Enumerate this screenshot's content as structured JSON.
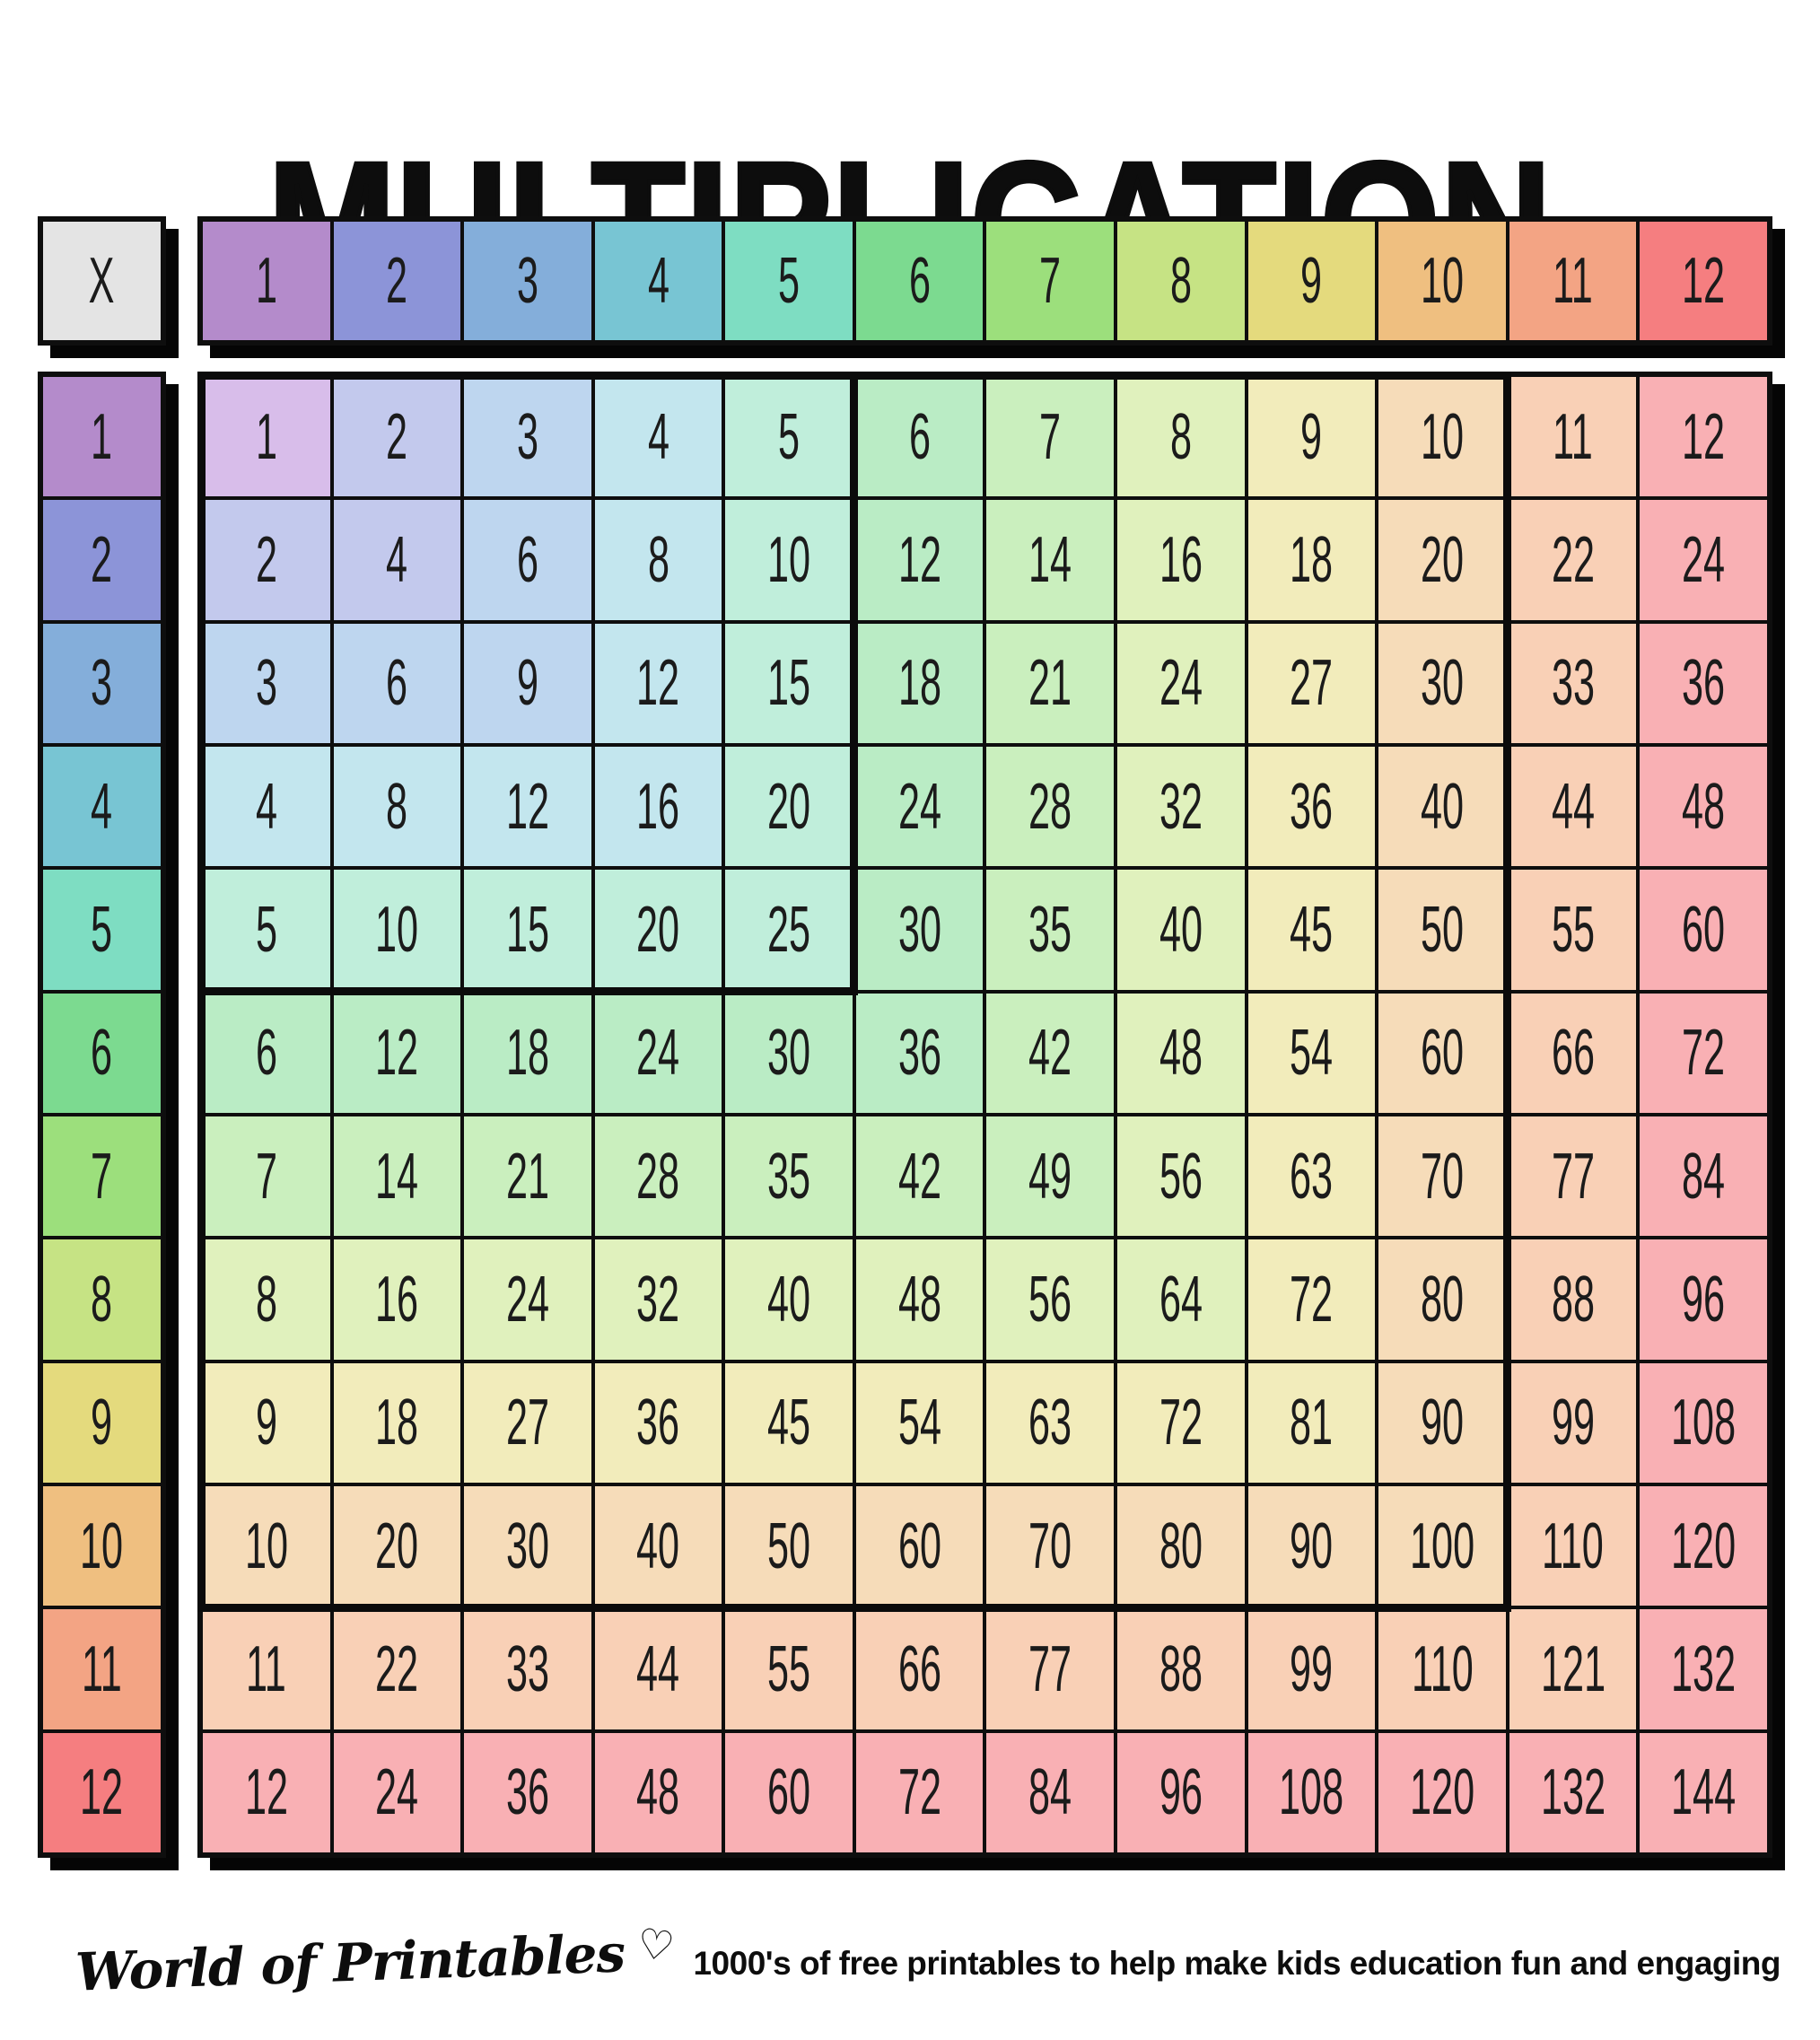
{
  "title": "MULTIPLICATION",
  "corner_label": "X",
  "footer": {
    "brand": "World of Printables",
    "heart_icon": "♡",
    "tagline": "1000's of free printables to help make kids education fun and engaging"
  },
  "palette": {
    "line": "#0e0e0e",
    "corner_bg": "#e4e4e4",
    "header": [
      "#b48bcb",
      "#8c94d8",
      "#84aeda",
      "#78c5d3",
      "#7eddc2",
      "#7cda90",
      "#9cdf7c",
      "#c6e384",
      "#e4da7d",
      "#efbf80",
      "#f3a484",
      "#f57e80"
    ],
    "tint": [
      "#d8bdea",
      "#c3c9ed",
      "#bed6ef",
      "#c3e6ee",
      "#c0eedb",
      "#baecc5",
      "#caefbe",
      "#e0f1bd",
      "#f2ecbb",
      "#f6dcb9",
      "#f9d0b6",
      "#f9b0b4"
    ]
  },
  "chart_data": {
    "type": "table",
    "title": "MULTIPLICATION",
    "col_headers": [
      "1",
      "2",
      "3",
      "4",
      "5",
      "6",
      "7",
      "8",
      "9",
      "10",
      "11",
      "12"
    ],
    "row_headers": [
      "1",
      "2",
      "3",
      "4",
      "5",
      "6",
      "7",
      "8",
      "9",
      "10",
      "11",
      "12"
    ],
    "values": [
      [
        1,
        2,
        3,
        4,
        5,
        6,
        7,
        8,
        9,
        10,
        11,
        12
      ],
      [
        2,
        4,
        6,
        8,
        10,
        12,
        14,
        16,
        18,
        20,
        22,
        24
      ],
      [
        3,
        6,
        9,
        12,
        15,
        18,
        21,
        24,
        27,
        30,
        33,
        36
      ],
      [
        4,
        8,
        12,
        16,
        20,
        24,
        28,
        32,
        36,
        40,
        44,
        48
      ],
      [
        5,
        10,
        15,
        20,
        25,
        30,
        35,
        40,
        45,
        50,
        55,
        60
      ],
      [
        6,
        12,
        18,
        24,
        30,
        36,
        42,
        48,
        54,
        60,
        66,
        72
      ],
      [
        7,
        14,
        21,
        28,
        35,
        42,
        49,
        56,
        63,
        70,
        77,
        84
      ],
      [
        8,
        16,
        24,
        32,
        40,
        48,
        56,
        64,
        72,
        80,
        88,
        96
      ],
      [
        9,
        18,
        27,
        36,
        45,
        54,
        63,
        72,
        81,
        90,
        99,
        108
      ],
      [
        10,
        20,
        30,
        40,
        50,
        60,
        70,
        80,
        90,
        100,
        110,
        120
      ],
      [
        11,
        22,
        33,
        44,
        55,
        66,
        77,
        88,
        99,
        110,
        121,
        132
      ],
      [
        12,
        24,
        36,
        48,
        60,
        72,
        84,
        96,
        108,
        120,
        132,
        144
      ]
    ],
    "layout_hints": {
      "highlight_blocks": [
        "5x5",
        "10x10"
      ],
      "color_rule": "cell tint = palette.tint[max(row,col)]"
    }
  }
}
